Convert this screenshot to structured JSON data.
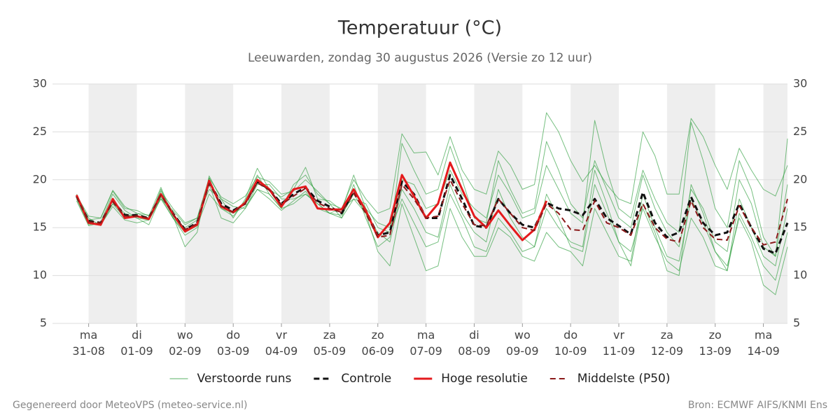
{
  "chart_data": {
    "type": "line",
    "title": "Temperatuur (°C)",
    "subtitle": "Leeuwarden, zondag 30 augustus 2026 (Versie zo 12 uur)",
    "footer_left": "Gegenereerd door MeteoVPS (meteo-service.nl)",
    "footer_right": "Bron: ECMWF AIFS/KNMI Ens",
    "x": [
      0.75,
      1,
      1.25,
      1.5,
      1.75,
      2,
      2.25,
      2.5,
      2.75,
      3,
      3.25,
      3.5,
      3.75,
      4,
      4.25,
      4.5,
      4.75,
      5,
      5.25,
      5.5,
      5.75,
      6,
      6.25,
      6.5,
      6.75,
      7,
      7.25,
      7.5,
      7.75,
      8,
      8.25,
      8.5,
      8.75,
      9,
      9.25,
      9.5,
      9.75,
      10,
      10.25,
      10.5,
      10.75,
      11,
      11.25,
      11.5,
      11.75,
      12,
      12.25,
      12.5,
      12.75,
      13,
      13.25,
      13.5,
      13.75,
      14,
      14.25,
      14.5,
      14.75,
      15,
      15.25,
      15.5
    ],
    "xlim": [
      0.25,
      15.5
    ],
    "xticks": [
      {
        "value": 1,
        "label": "ma\n31-08"
      },
      {
        "value": 2,
        "label": "di\n01-09"
      },
      {
        "value": 3,
        "label": "wo\n02-09"
      },
      {
        "value": 4,
        "label": "do\n03-09"
      },
      {
        "value": 5,
        "label": "vr\n04-09"
      },
      {
        "value": 6,
        "label": "za\n05-09"
      },
      {
        "value": 7,
        "label": "zo\n06-09"
      },
      {
        "value": 8,
        "label": "ma\n07-09"
      },
      {
        "value": 9,
        "label": "di\n08-09"
      },
      {
        "value": 10,
        "label": "wo\n09-09"
      },
      {
        "value": 11,
        "label": "do\n10-09"
      },
      {
        "value": 12,
        "label": "vr\n11-09"
      },
      {
        "value": 13,
        "label": "za\n12-09"
      },
      {
        "value": 14,
        "label": "zo\n13-09"
      },
      {
        "value": 15,
        "label": "ma\n14-09"
      }
    ],
    "ylim": [
      5,
      30
    ],
    "yticks": [
      5,
      10,
      15,
      20,
      25,
      30
    ],
    "y2lim": [
      5,
      30
    ],
    "y2ticks": [
      5,
      10,
      15,
      20,
      25,
      30
    ],
    "grid": true,
    "legend": "bottom",
    "ensemble": {
      "name": "Verstoorde runs",
      "color": "#2e9e3e",
      "runs": [
        [
          18.0,
          15.3,
          15.6,
          18.5,
          16.8,
          16.0,
          15.8,
          19.0,
          16.0,
          14.2,
          15.0,
          20.2,
          17.0,
          16.2,
          17.8,
          20.5,
          18.5,
          17.0,
          19.5,
          20.5,
          18.5,
          17.5,
          16.0,
          19.5,
          16.0,
          13.0,
          14.0,
          23.8,
          21.0,
          18.5,
          19.0,
          23.5,
          20.0,
          16.0,
          15.5,
          22.0,
          19.0,
          16.5,
          17.0,
          24.0,
          21.0,
          17.5,
          16.0,
          22.0,
          19.0,
          16.0,
          15.0,
          20.5,
          17.0,
          14.5,
          13.0,
          19.0,
          17.0,
          13.5,
          12.5,
          20.0,
          17.5,
          13.0,
          12.0,
          19.5
        ],
        [
          18.2,
          16.0,
          15.2,
          17.5,
          16.0,
          16.5,
          16.3,
          18.0,
          16.8,
          15.3,
          16.0,
          19.0,
          18.0,
          17.2,
          17.0,
          19.5,
          19.5,
          18.0,
          18.0,
          18.5,
          17.5,
          16.5,
          17.0,
          18.0,
          17.5,
          15.0,
          14.5,
          18.0,
          15.5,
          13.0,
          13.5,
          18.5,
          16.0,
          13.0,
          12.5,
          16.0,
          14.5,
          12.5,
          13.0,
          17.0,
          15.0,
          13.5,
          13.0,
          21.0,
          17.5,
          13.5,
          12.5,
          17.0,
          14.0,
          11.5,
          10.5,
          16.0,
          14.0,
          11.0,
          10.5,
          16.5,
          14.0,
          11.0,
          9.5,
          14.5
        ],
        [
          18.5,
          15.8,
          16.0,
          18.8,
          17.0,
          16.8,
          16.2,
          19.2,
          16.2,
          13.0,
          14.5,
          20.4,
          18.0,
          16.0,
          18.0,
          21.2,
          19.0,
          18.2,
          19.0,
          21.3,
          18.0,
          17.8,
          16.8,
          20.5,
          17.0,
          15.5,
          15.0,
          20.0,
          19.5,
          17.0,
          17.5,
          21.0,
          18.5,
          17.0,
          16.0,
          20.5,
          18.5,
          16.0,
          16.5,
          21.5,
          19.0,
          16.5,
          15.5,
          26.2,
          21.0,
          17.0,
          16.0,
          21.0,
          18.0,
          15.5,
          14.5,
          26.0,
          22.0,
          17.0,
          15.0,
          22.0,
          19.0,
          14.0,
          12.0,
          24.3
        ],
        [
          17.8,
          15.2,
          15.5,
          17.5,
          16.5,
          16.0,
          15.3,
          18.2,
          16.0,
          15.0,
          15.8,
          19.5,
          16.0,
          15.5,
          17.0,
          19.0,
          18.5,
          17.0,
          17.5,
          18.5,
          17.5,
          16.5,
          16.0,
          18.0,
          16.5,
          12.5,
          11.0,
          17.5,
          14.0,
          10.5,
          11.0,
          17.0,
          14.0,
          12.0,
          12.0,
          15.0,
          14.0,
          12.0,
          11.5,
          14.5,
          13.0,
          12.5,
          11.0,
          17.0,
          14.5,
          12.0,
          11.5,
          18.5,
          15.0,
          12.0,
          11.5,
          18.0,
          15.5,
          12.5,
          11.0,
          16.0,
          13.5,
          9.0,
          8.0,
          13.0
        ],
        [
          18.4,
          16.2,
          16.0,
          18.9,
          17.2,
          16.5,
          16.0,
          18.8,
          17.0,
          15.5,
          16.0,
          20.2,
          18.2,
          17.5,
          18.3,
          20.3,
          19.8,
          18.5,
          18.8,
          20.0,
          18.8,
          17.5,
          17.0,
          20.0,
          18.0,
          16.5,
          17.0,
          24.8,
          22.8,
          22.9,
          20.5,
          24.5,
          21.0,
          19.0,
          18.5,
          23.0,
          21.5,
          19.0,
          19.5,
          27.0,
          25.0,
          22.0,
          19.8,
          21.5,
          19.5,
          18.0,
          17.5,
          25.0,
          22.5,
          18.5,
          18.5,
          26.4,
          24.5,
          21.5,
          19.0,
          23.3,
          21.0,
          19.0,
          18.3,
          21.5
        ],
        [
          18.1,
          15.5,
          15.3,
          17.2,
          15.8,
          15.5,
          15.8,
          18.0,
          16.0,
          14.5,
          15.2,
          18.5,
          17.0,
          16.5,
          17.2,
          19.0,
          18.0,
          16.8,
          17.8,
          18.8,
          17.0,
          16.5,
          16.3,
          18.5,
          16.5,
          14.5,
          13.5,
          19.0,
          17.0,
          14.5,
          14.0,
          19.5,
          16.5,
          14.5,
          13.5,
          19.0,
          16.0,
          14.0,
          13.0,
          18.5,
          16.0,
          13.0,
          12.5,
          19.5,
          16.5,
          13.5,
          11.0,
          17.5,
          14.5,
          10.5,
          10.0,
          19.5,
          16.5,
          12.5,
          10.5,
          18.0,
          15.0,
          12.0,
          11.0,
          17.0
        ]
      ]
    },
    "series": [
      {
        "name": "Controle",
        "color": "#111111",
        "style": "dashed",
        "width": 3,
        "values": [
          18.3,
          15.7,
          15.5,
          17.8,
          16.3,
          16.3,
          16.0,
          18.5,
          16.5,
          14.8,
          15.5,
          19.8,
          17.5,
          16.8,
          17.5,
          19.8,
          19.0,
          17.5,
          18.5,
          19.2,
          17.8,
          17.2,
          16.5,
          18.8,
          16.8,
          14.2,
          14.5,
          19.8,
          18.5,
          16.0,
          16.0,
          20.5,
          18.0,
          15.2,
          15.0,
          18.0,
          16.5,
          15.3,
          15.0,
          17.6,
          17.0,
          16.8,
          16.3,
          18.0,
          16.0,
          15.2,
          14.3,
          18.7,
          15.5,
          14.0,
          14.5,
          18.2,
          15.5,
          14.2,
          14.5,
          17.5,
          15.0,
          12.8,
          12.3,
          15.5
        ]
      },
      {
        "name": "Hoge resolutie",
        "color": "#e41a1c",
        "style": "solid",
        "width": 3,
        "values": [
          18.4,
          15.5,
          15.3,
          18.0,
          16.0,
          16.2,
          15.9,
          18.5,
          16.4,
          14.6,
          15.3,
          19.9,
          17.2,
          16.6,
          17.6,
          20.0,
          19.0,
          17.2,
          19.0,
          19.3,
          17.0,
          16.9,
          16.9,
          19.0,
          16.8,
          14.0,
          15.5,
          20.5,
          18.3,
          16.0,
          17.5,
          21.8,
          19.0,
          16.2,
          15.0,
          16.8,
          15.2,
          13.7,
          14.8,
          17.8,
          null,
          null,
          null,
          null,
          null,
          null,
          null,
          null,
          null,
          null,
          null,
          null,
          null,
          null,
          null,
          null,
          null,
          null,
          null,
          null
        ]
      },
      {
        "name": "Middelste (P50)",
        "color": "#8b1a1a",
        "style": "dashed",
        "width": 2,
        "values": [
          18.2,
          15.6,
          15.5,
          17.7,
          16.2,
          16.2,
          16.0,
          18.4,
          16.4,
          14.8,
          15.4,
          19.6,
          17.3,
          16.6,
          17.5,
          19.7,
          18.9,
          17.4,
          18.3,
          19.1,
          17.6,
          17.0,
          16.6,
          18.6,
          16.5,
          14.0,
          14.2,
          19.5,
          18.0,
          16.0,
          16.2,
          20.0,
          17.5,
          15.3,
          15.2,
          18.0,
          16.5,
          15.0,
          14.7,
          17.5,
          16.5,
          14.8,
          14.7,
          17.8,
          15.5,
          15.0,
          14.2,
          17.5,
          15.0,
          13.8,
          13.5,
          17.8,
          15.0,
          13.8,
          13.7,
          17.3,
          15.0,
          13.2,
          13.5,
          18.0
        ]
      }
    ]
  }
}
